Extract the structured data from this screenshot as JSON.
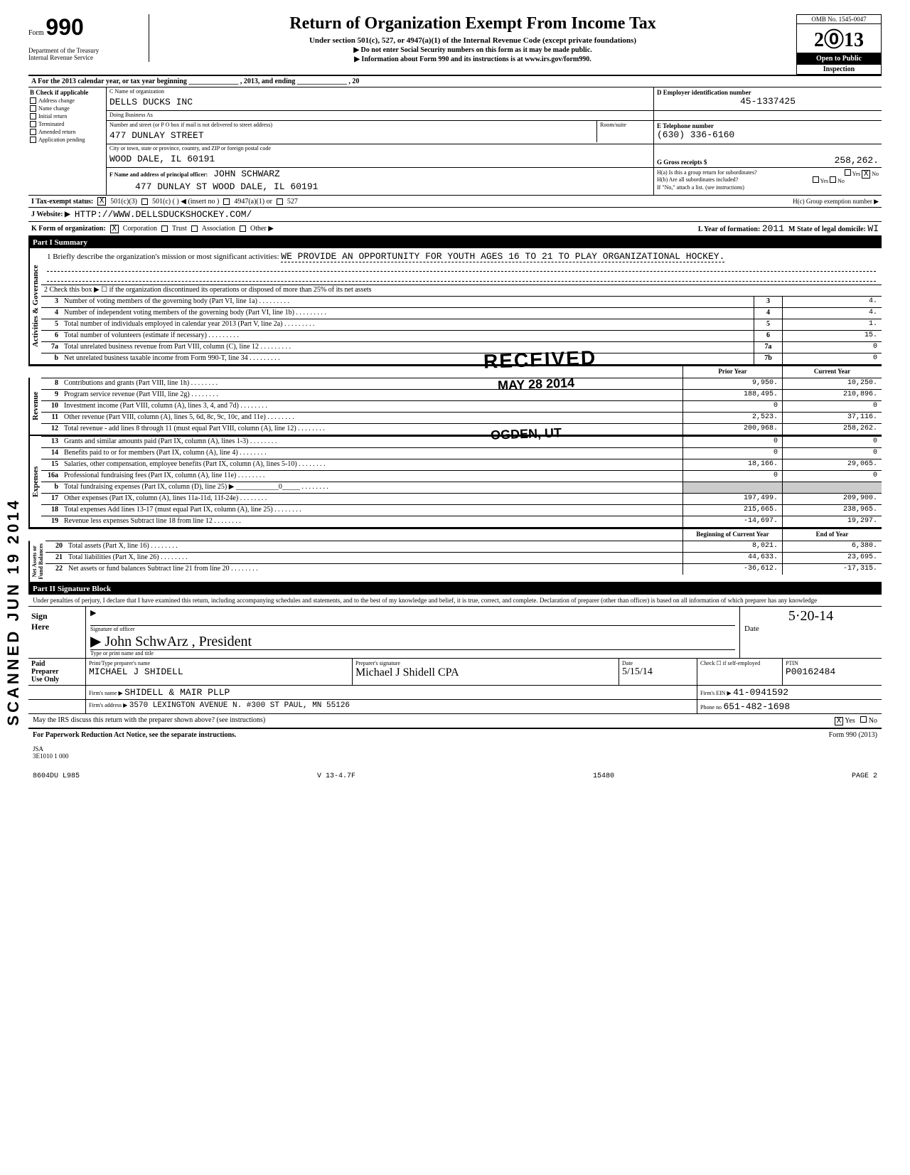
{
  "omb": "OMB No. 1545-0047",
  "form_label": "Form",
  "form_number": "990",
  "dept": "Department of the Treasury\nInternal Revenue Service",
  "title": "Return of Organization Exempt From Income Tax",
  "subtitle": "Under section 501(c), 527, or 4947(a)(1) of the Internal Revenue Code (except private foundations)",
  "subline1": "▶ Do not enter Social Security numbers on this form as it may be made public.",
  "subline2": "▶ Information about Form 990 and its instructions is at www.irs.gov/form990.",
  "year": "2013",
  "open_public": "Open to Public",
  "inspection": "Inspection",
  "line_a": "A For the 2013 calendar year, or tax year beginning ______________ , 2013, and ending ______________ , 20",
  "b_label": "B Check if applicable",
  "b_checks": [
    "Address change",
    "Name change",
    "Initial return",
    "Terminated",
    "Amended return",
    "Application pending"
  ],
  "c_name_lbl": "C Name of organization",
  "c_name": "DELLS DUCKS INC",
  "c_dba_lbl": "Doing Business As",
  "c_addr_lbl": "Number and street (or P O box if mail is not delivered to street address)",
  "c_room_lbl": "Room/suite",
  "c_addr": "477 DUNLAY STREET",
  "c_city_lbl": "City or town, state or province, country, and ZIP or foreign postal code",
  "c_city": "WOOD DALE, IL 60191",
  "d_lbl": "D  Employer identification number",
  "d_val": "45-1337425",
  "e_lbl": "E  Telephone number",
  "e_val": "(630) 336-6160",
  "g_lbl": "G  Gross receipts $",
  "g_val": "258,262.",
  "f_lbl": "F Name and address of principal officer:",
  "f_name": "JOHN SCHWARZ",
  "f_addr": "477 DUNLAY ST WOOD DALE, IL 60191",
  "ha_lbl": "H(a) Is this a group return for subordinates?",
  "ha_yes": "Yes",
  "ha_no": "No",
  "hb_lbl": "H(b) Are all subordinates included?",
  "hc_lbl": "H(c) Group exemption number ▶",
  "h_note": "If \"No,\" attach a list. (see instructions)",
  "i_lbl": "I   Tax-exempt status:",
  "i_opts": [
    "501(c)(3)",
    "501(c) (      ) ◀ (insert no )",
    "4947(a)(1) or",
    "527"
  ],
  "j_lbl": "J   Website: ▶",
  "j_val": "HTTP://WWW.DELLSDUCKSHOCKEY.COM/",
  "k_lbl": "K  Form of organization:",
  "k_opts": [
    "Corporation",
    "Trust",
    "Association",
    "Other ▶"
  ],
  "l_lbl": "L Year of formation:",
  "l_val": "2011",
  "m_lbl": "M State of legal domicile:",
  "m_val": "WI",
  "part1": "Part I     Summary",
  "ag_label": "Activities & Governance",
  "mission_lbl": "1   Briefly describe the organization's mission or most significant activities:",
  "mission": "WE PROVIDE AN OPPORTUNITY FOR YOUTH AGES 16 TO 21 TO PLAY ORGANIZATIONAL HOCKEY.",
  "line2": "2   Check this box ▶ ☐ if the organization discontinued its operations or disposed of more than 25% of its net assets",
  "ag_rows": [
    {
      "n": "3",
      "d": "Number of voting members of the governing body (Part VI, line 1a)",
      "b": "3",
      "v": "4."
    },
    {
      "n": "4",
      "d": "Number of independent voting members of the governing body (Part VI, line 1b)",
      "b": "4",
      "v": "4."
    },
    {
      "n": "5",
      "d": "Total number of individuals employed in calendar year 2013 (Part V, line 2a)",
      "b": "5",
      "v": "1."
    },
    {
      "n": "6",
      "d": "Total number of volunteers (estimate if necessary)",
      "b": "6",
      "v": "15."
    },
    {
      "n": "7a",
      "d": "Total unrelated business revenue from Part VIII, column (C), line 12",
      "b": "7a",
      "v": "0"
    },
    {
      "n": "b",
      "d": "Net unrelated business taxable income from Form 990-T, line 34",
      "b": "7b",
      "v": "0"
    }
  ],
  "col_prior": "Prior Year",
  "col_curr": "Current Year",
  "rev_label": "Revenue",
  "rev_rows": [
    {
      "n": "8",
      "d": "Contributions and grants (Part VIII, line 1h)",
      "p": "9,950.",
      "c": "10,250."
    },
    {
      "n": "9",
      "d": "Program service revenue (Part VIII, line 2g)",
      "p": "188,495.",
      "c": "210,896."
    },
    {
      "n": "10",
      "d": "Investment income (Part VIII, column (A), lines 3, 4, and 7d)",
      "p": "0",
      "c": "0"
    },
    {
      "n": "11",
      "d": "Other revenue (Part VIII, column (A), lines 5, 6d, 8c, 9c, 10c, and 11e)",
      "p": "2,523.",
      "c": "37,116."
    },
    {
      "n": "12",
      "d": "Total revenue - add lines 8 through 11 (must equal Part VIII, column (A), line 12)",
      "p": "200,968.",
      "c": "258,262."
    }
  ],
  "exp_label": "Expenses",
  "exp_rows": [
    {
      "n": "13",
      "d": "Grants and similar amounts paid (Part IX, column (A), lines 1-3)",
      "p": "0",
      "c": "0"
    },
    {
      "n": "14",
      "d": "Benefits paid to or for members (Part IX, column (A), line 4)",
      "p": "0",
      "c": "0"
    },
    {
      "n": "15",
      "d": "Salaries, other compensation, employee benefits (Part IX, column (A), lines 5-10)",
      "p": "18,166.",
      "c": "29,065."
    },
    {
      "n": "16a",
      "d": "Professional fundraising fees (Part IX, column (A), line 11e)",
      "p": "0",
      "c": "0"
    },
    {
      "n": "b",
      "d": "Total fundraising expenses (Part IX, column (D), line 25) ▶ ____________0_____",
      "p": "",
      "c": "",
      "shade": true
    },
    {
      "n": "17",
      "d": "Other expenses (Part IX, column (A), lines 11a-11d, 11f-24e)",
      "p": "197,499.",
      "c": "209,900."
    },
    {
      "n": "18",
      "d": "Total expenses  Add lines 13-17 (must equal Part IX, column (A), line 25)",
      "p": "215,665.",
      "c": "238,965."
    },
    {
      "n": "19",
      "d": "Revenue less expenses  Subtract line 18 from line 12",
      "p": "-14,697.",
      "c": "19,297."
    }
  ],
  "na_label": "Net Assets or\nFund Balances",
  "col_begin": "Beginning of Current Year",
  "col_end": "End of Year",
  "na_rows": [
    {
      "n": "20",
      "d": "Total assets (Part X, line 16)",
      "p": "8,021.",
      "c": "6,380."
    },
    {
      "n": "21",
      "d": "Total liabilities (Part X, line 26)",
      "p": "44,633.",
      "c": "23,695."
    },
    {
      "n": "22",
      "d": "Net assets or fund balances  Subtract line 21 from line 20",
      "p": "-36,612.",
      "c": "-17,315."
    }
  ],
  "part2": "Part II    Signature Block",
  "perjury": "Under penalties of perjury, I declare that I have examined this return, including accompanying schedules and statements, and to the best of my knowledge and belief, it is true, correct, and complete. Declaration of preparer (other than officer) is based on all information of which preparer has any knowledge",
  "sign_here": "Sign\nHere",
  "sig_officer_lbl": "Signature of officer",
  "sig_date_lbl": "Date",
  "sig_date": "5·20-14",
  "sig_name_lbl": "Type or print name and title",
  "sig_name_hand": "John SchwArz , President",
  "paid_lbl": "Paid\nPreparer\nUse Only",
  "prep_name_lbl": "Print/Type preparer's name",
  "prep_name": "MICHAEL J SHIDELL",
  "prep_sig_lbl": "Preparer's signature",
  "prep_sig": "Michael J Shidell CPA",
  "prep_date": "5/15/14",
  "prep_check_lbl": "Check ☐ if self-employed",
  "prep_ptin_lbl": "PTIN",
  "prep_ptin": "P00162484",
  "firm_name_lbl": "Firm's name ▶",
  "firm_name": "SHIDELL & MAIR PLLP",
  "firm_ein_lbl": "Firm's EIN ▶",
  "firm_ein": "41-0941592",
  "firm_addr_lbl": "Firm's address ▶",
  "firm_addr": "3570 LEXINGTON AVENUE N. #300 ST PAUL, MN 55126",
  "firm_phone_lbl": "Phone no",
  "firm_phone": "651-482-1698",
  "discuss": "May the IRS discuss this return with the preparer shown above? (see instructions)",
  "discuss_yes": "Yes",
  "discuss_no": "No",
  "paperwork": "For Paperwork Reduction Act Notice, see the separate instructions.",
  "form_foot": "Form 990 (2013)",
  "jsa": "JSA\n3E1010 1 000",
  "bottom_code": "8604DU L985",
  "bottom_ver": "V 13-4.7F",
  "bottom_num": "15480",
  "bottom_page": "PAGE 2",
  "stamps": {
    "received": "RECEIVED",
    "date": "MAY 28 2014",
    "ogden": "OGDEN, UT",
    "scanned": "SCANNED  JUN 19 2014"
  }
}
